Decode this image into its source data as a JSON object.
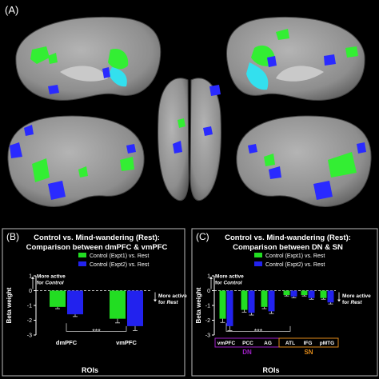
{
  "panel_a": {
    "label": "(A)"
  },
  "chart_data": [
    {
      "type": "bar",
      "panel_label": "(B)",
      "title": "Control vs. Mind-wandering (Rest):",
      "subtitle": "Comparison between dmPFC & vmPFC",
      "xlabel": "ROIs",
      "ylabel": "Beta weight",
      "ylim": [
        -3,
        1
      ],
      "yticks": [
        1,
        0,
        -1,
        -2,
        -3
      ],
      "categories": [
        "dmPFC",
        "vmPFC"
      ],
      "series": [
        {
          "name": "Control (Expt1) vs. Rest",
          "color": "#22dd22",
          "values": [
            -1.1,
            -1.9
          ],
          "errors": [
            0.12,
            0.28
          ]
        },
        {
          "name": "Control (Expt2) vs. Rest",
          "color": "#2222ee",
          "values": [
            -1.6,
            -2.4
          ],
          "errors": [
            0.15,
            0.3
          ]
        }
      ],
      "annotations": {
        "up_line1": "More active",
        "up_line2_pre": "for ",
        "up_line2_em": "Control",
        "down_line1": "More active",
        "down_line2_pre": "for ",
        "down_line2_em": "Rest",
        "significance": "***"
      }
    },
    {
      "type": "bar",
      "panel_label": "(C)",
      "title": "Control vs. Mind-wandering (Rest):",
      "subtitle": "Comparison between DN & SN",
      "xlabel": "ROIs",
      "ylabel": "Beta weight",
      "ylim": [
        -3,
        1
      ],
      "yticks": [
        1,
        0,
        -1,
        -2,
        -3
      ],
      "categories": [
        "vmPFC",
        "PCC",
        "AG",
        "ATL",
        "IFG",
        "pMTG"
      ],
      "series": [
        {
          "name": "Control (Expt1) vs. Rest",
          "color": "#22dd22",
          "values": [
            -1.9,
            -1.3,
            -1.1,
            -0.3,
            -0.3,
            -0.5
          ],
          "errors": [
            0.25,
            0.15,
            0.12,
            0.06,
            0.06,
            0.08
          ]
        },
        {
          "name": "Control (Expt2) vs. Rest",
          "color": "#2222ee",
          "values": [
            -2.4,
            -1.5,
            -1.4,
            -0.4,
            -0.5,
            -0.8
          ],
          "errors": [
            0.3,
            0.15,
            0.15,
            0.08,
            0.08,
            0.1
          ]
        }
      ],
      "groups": [
        {
          "name": "DN",
          "color": "#a020c8",
          "categories": [
            "vmPFC",
            "PCC",
            "AG"
          ]
        },
        {
          "name": "SN",
          "color": "#e08a1a",
          "categories": [
            "ATL",
            "IFG",
            "pMTG"
          ]
        }
      ],
      "annotations": {
        "up_line1": "More active",
        "up_line2_pre": "for ",
        "up_line2_em": "Control",
        "down_line1": "More active",
        "down_line2_pre": "for ",
        "down_line2_em": "Rest",
        "significance": "***"
      }
    }
  ]
}
